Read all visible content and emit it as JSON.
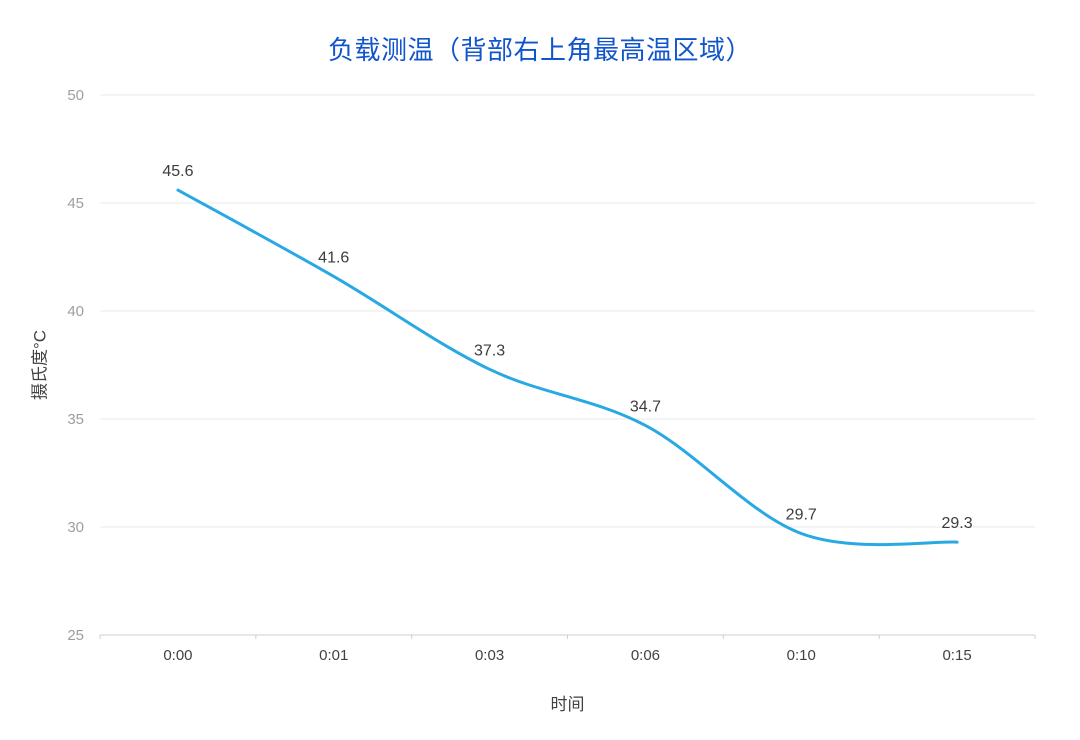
{
  "chart_data": {
    "type": "line",
    "title": "负载测温（背部右上角最高温区域）",
    "xlabel": "时间",
    "ylabel": "摄氏度°C",
    "categories": [
      "0:00",
      "0:01",
      "0:03",
      "0:06",
      "0:10",
      "0:15"
    ],
    "values": [
      45.6,
      41.6,
      37.3,
      34.7,
      29.7,
      29.3
    ],
    "data_labels": [
      "45.6",
      "41.6",
      "37.3",
      "34.7",
      "29.7",
      "29.3"
    ],
    "ylim": [
      25,
      50
    ],
    "yticks": [
      25,
      30,
      35,
      40,
      45,
      50
    ],
    "grid": true,
    "smooth": true,
    "legend": "none",
    "colors": {
      "line": "#29a9e3",
      "title": "#1155cc",
      "grid": "#e8e8e8",
      "axis_line": "#cfcfcf",
      "y_tick_label": "#9e9e9e",
      "x_tick_label": "#424242",
      "data_label": "#3c3c3c",
      "axis_title": "#424242"
    }
  }
}
